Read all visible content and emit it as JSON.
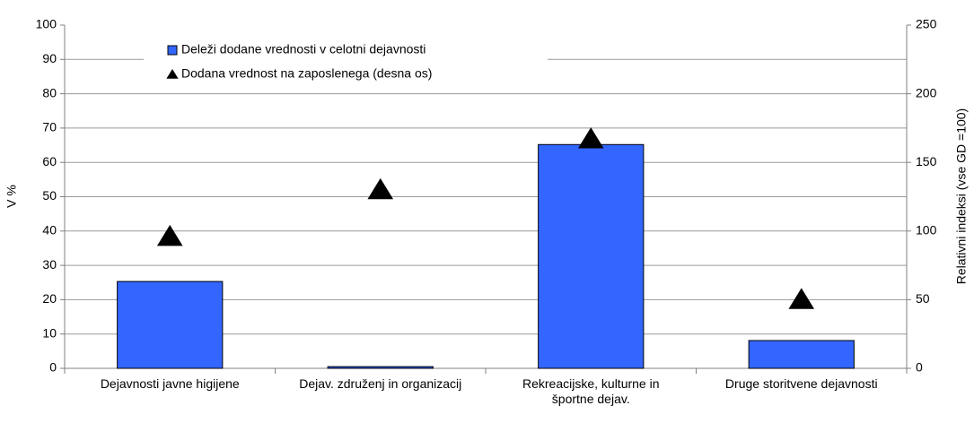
{
  "chart_data": {
    "type": "bar",
    "categories": [
      "Dejavnosti javne higijene",
      "Dejav. združenj in organizacij",
      "Rekreacijske, kulturne in športne dejav.",
      "Druge storitvene dejavnosti"
    ],
    "series": [
      {
        "name": "Deleži dodane vrednosti v celotni dejavnosti",
        "type": "bar",
        "color": "#3366ff",
        "values": [
          25.3,
          0.5,
          65.2,
          8.1
        ]
      },
      {
        "name": "Dodana vrednost na zaposlenega (desna os)",
        "type": "scatter",
        "marker": "triangle",
        "color": "#000000",
        "axis": "y2",
        "values": [
          96,
          130,
          167,
          50
        ]
      }
    ],
    "ylabel": "V %",
    "y2label": "Relativni indeksi (vse GD =100)",
    "ylim": [
      0,
      100
    ],
    "yticks": [
      0,
      10,
      20,
      30,
      40,
      50,
      60,
      70,
      80,
      90,
      100
    ],
    "y2lim": [
      0,
      250
    ],
    "y2ticks": [
      0,
      50,
      100,
      150,
      200,
      250
    ],
    "grid": true,
    "legend": "top-left"
  }
}
